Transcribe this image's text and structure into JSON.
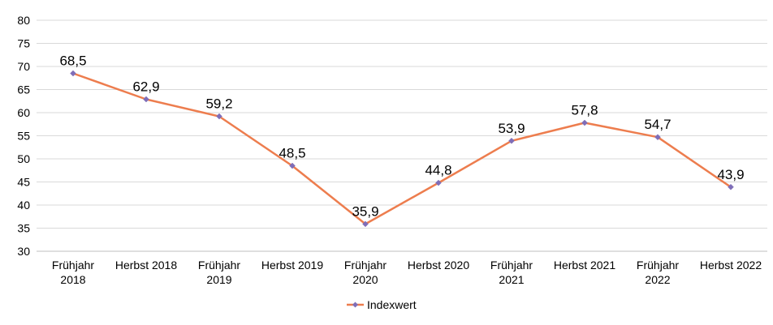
{
  "chart_data": {
    "type": "line",
    "categories": [
      [
        "Frühjahr",
        "2018"
      ],
      [
        "Herbst 2018"
      ],
      [
        "Frühjahr",
        "2019"
      ],
      [
        "Herbst 2019"
      ],
      [
        "Frühjahr",
        "2020"
      ],
      [
        "Herbst 2020"
      ],
      [
        "Frühjahr",
        "2021"
      ],
      [
        "Herbst 2021"
      ],
      [
        "Frühjahr",
        "2022"
      ],
      [
        "Herbst 2022"
      ]
    ],
    "series": [
      {
        "name": "Indexwert",
        "values": [
          68.5,
          62.9,
          59.2,
          48.5,
          35.9,
          44.8,
          53.9,
          57.8,
          54.7,
          43.9
        ],
        "labels": [
          "68,5",
          "62,9",
          "59,2",
          "48,5",
          "35,9",
          "44,8",
          "53,9",
          "57,8",
          "54,7",
          "43,9"
        ],
        "line_color": "#ED7D4E",
        "marker_color": "#7F6EB8"
      }
    ],
    "ylim": [
      30,
      80
    ],
    "yticks": [
      30,
      35,
      40,
      45,
      50,
      55,
      60,
      65,
      70,
      75,
      80
    ],
    "grid": true,
    "legend_position": "bottom"
  }
}
